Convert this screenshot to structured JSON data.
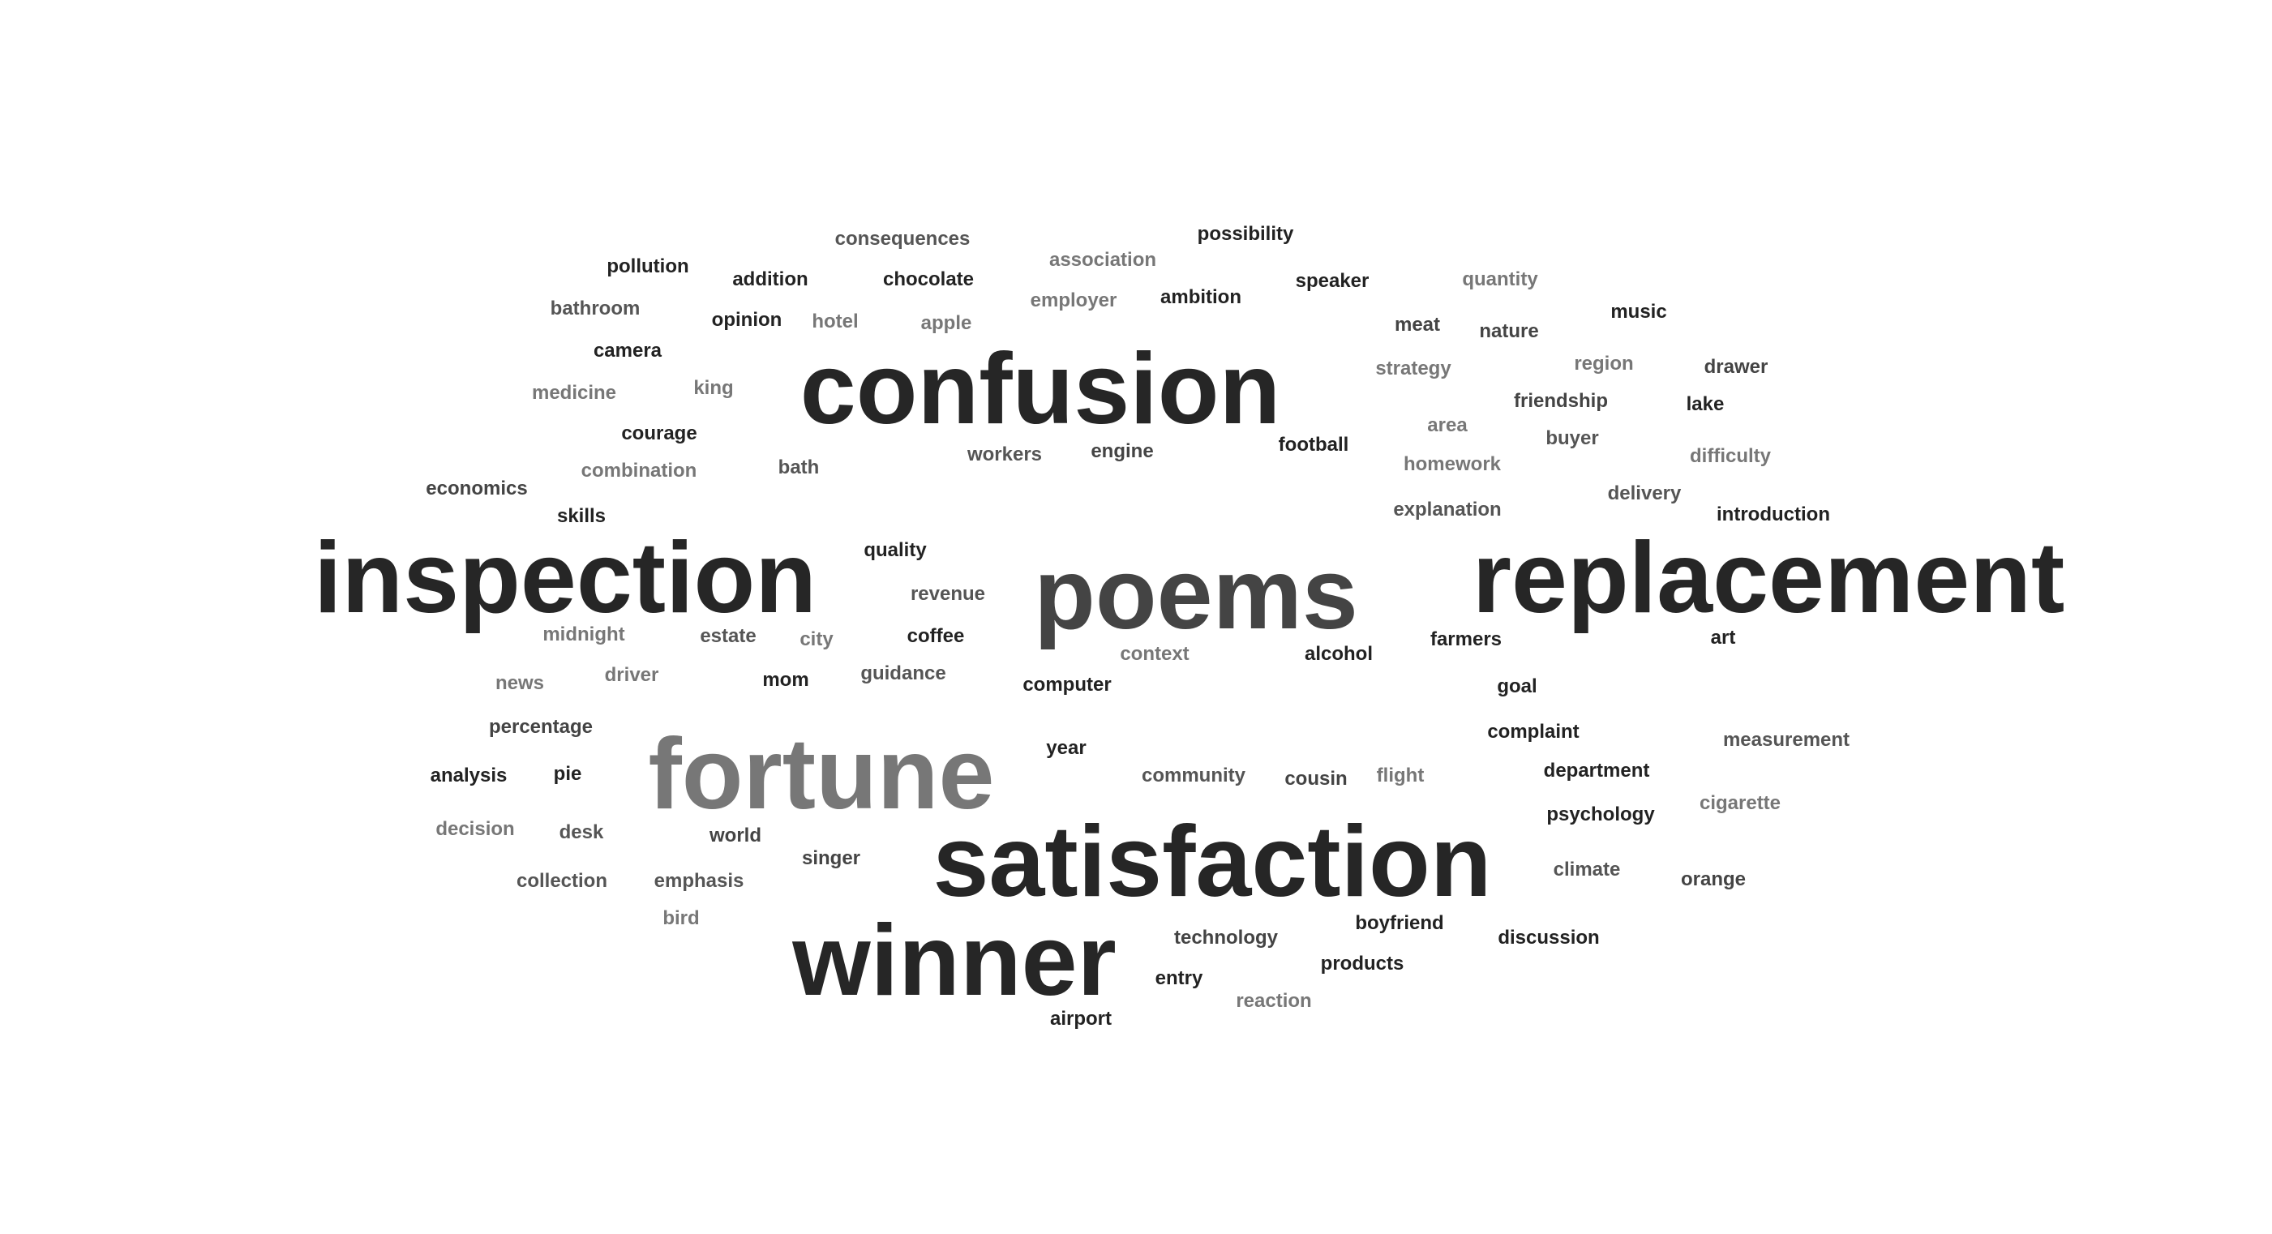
{
  "cloud": {
    "words": [
      {
        "text": "confusion",
        "color": "#262626"
      },
      {
        "text": "inspection",
        "color": "#262626"
      },
      {
        "text": "poems",
        "color": "#444444"
      },
      {
        "text": "replacement",
        "color": "#262626"
      },
      {
        "text": "fortune",
        "color": "#777777"
      },
      {
        "text": "satisfaction",
        "color": "#262626"
      },
      {
        "text": "winner",
        "color": "#262626"
      },
      {
        "text": "consequences",
        "color": "#555555"
      },
      {
        "text": "possibility",
        "color": "#222222"
      },
      {
        "text": "pollution",
        "color": "#222222"
      },
      {
        "text": "addition",
        "color": "#222222"
      },
      {
        "text": "chocolate",
        "color": "#222222"
      },
      {
        "text": "association",
        "color": "#777777"
      },
      {
        "text": "speaker",
        "color": "#222222"
      },
      {
        "text": "quantity",
        "color": "#777777"
      },
      {
        "text": "bathroom",
        "color": "#555555"
      },
      {
        "text": "opinion",
        "color": "#222222"
      },
      {
        "text": "hotel",
        "color": "#777777"
      },
      {
        "text": "apple",
        "color": "#777777"
      },
      {
        "text": "employer",
        "color": "#777777"
      },
      {
        "text": "ambition",
        "color": "#222222"
      },
      {
        "text": "music",
        "color": "#222222"
      },
      {
        "text": "meat",
        "color": "#444444"
      },
      {
        "text": "nature",
        "color": "#444444"
      },
      {
        "text": "camera",
        "color": "#222222"
      },
      {
        "text": "strategy",
        "color": "#777777"
      },
      {
        "text": "region",
        "color": "#777777"
      },
      {
        "text": "drawer",
        "color": "#444444"
      },
      {
        "text": "medicine",
        "color": "#777777"
      },
      {
        "text": "king",
        "color": "#777777"
      },
      {
        "text": "friendship",
        "color": "#444444"
      },
      {
        "text": "lake",
        "color": "#222222"
      },
      {
        "text": "courage",
        "color": "#222222"
      },
      {
        "text": "area",
        "color": "#777777"
      },
      {
        "text": "buyer",
        "color": "#555555"
      },
      {
        "text": "football",
        "color": "#222222"
      },
      {
        "text": "workers",
        "color": "#555555"
      },
      {
        "text": "engine",
        "color": "#444444"
      },
      {
        "text": "combination",
        "color": "#777777"
      },
      {
        "text": "bath",
        "color": "#555555"
      },
      {
        "text": "homework",
        "color": "#777777"
      },
      {
        "text": "difficulty",
        "color": "#777777"
      },
      {
        "text": "economics",
        "color": "#444444"
      },
      {
        "text": "delivery",
        "color": "#555555"
      },
      {
        "text": "explanation",
        "color": "#555555"
      },
      {
        "text": "skills",
        "color": "#222222"
      },
      {
        "text": "introduction",
        "color": "#222222"
      },
      {
        "text": "quality",
        "color": "#222222"
      },
      {
        "text": "revenue",
        "color": "#555555"
      },
      {
        "text": "midnight",
        "color": "#777777"
      },
      {
        "text": "estate",
        "color": "#555555"
      },
      {
        "text": "city",
        "color": "#777777"
      },
      {
        "text": "coffee",
        "color": "#222222"
      },
      {
        "text": "farmers",
        "color": "#222222"
      },
      {
        "text": "art",
        "color": "#222222"
      },
      {
        "text": "context",
        "color": "#777777"
      },
      {
        "text": "alcohol",
        "color": "#222222"
      },
      {
        "text": "news",
        "color": "#777777"
      },
      {
        "text": "driver",
        "color": "#777777"
      },
      {
        "text": "mom",
        "color": "#222222"
      },
      {
        "text": "guidance",
        "color": "#555555"
      },
      {
        "text": "computer",
        "color": "#222222"
      },
      {
        "text": "goal",
        "color": "#222222"
      },
      {
        "text": "percentage",
        "color": "#444444"
      },
      {
        "text": "complaint",
        "color": "#222222"
      },
      {
        "text": "year",
        "color": "#222222"
      },
      {
        "text": "measurement",
        "color": "#555555"
      },
      {
        "text": "analysis",
        "color": "#222222"
      },
      {
        "text": "pie",
        "color": "#222222"
      },
      {
        "text": "department",
        "color": "#222222"
      },
      {
        "text": "community",
        "color": "#555555"
      },
      {
        "text": "cousin",
        "color": "#444444"
      },
      {
        "text": "flight",
        "color": "#777777"
      },
      {
        "text": "cigarette",
        "color": "#777777"
      },
      {
        "text": "psychology",
        "color": "#222222"
      },
      {
        "text": "decision",
        "color": "#777777"
      },
      {
        "text": "desk",
        "color": "#555555"
      },
      {
        "text": "world",
        "color": "#444444"
      },
      {
        "text": "singer",
        "color": "#444444"
      },
      {
        "text": "climate",
        "color": "#555555"
      },
      {
        "text": "orange",
        "color": "#444444"
      },
      {
        "text": "collection",
        "color": "#555555"
      },
      {
        "text": "emphasis",
        "color": "#555555"
      },
      {
        "text": "bird",
        "color": "#777777"
      },
      {
        "text": "boyfriend",
        "color": "#222222"
      },
      {
        "text": "technology",
        "color": "#444444"
      },
      {
        "text": "discussion",
        "color": "#222222"
      },
      {
        "text": "products",
        "color": "#222222"
      },
      {
        "text": "entry",
        "color": "#222222"
      },
      {
        "text": "reaction",
        "color": "#777777"
      },
      {
        "text": "airport",
        "color": "#222222"
      }
    ]
  }
}
